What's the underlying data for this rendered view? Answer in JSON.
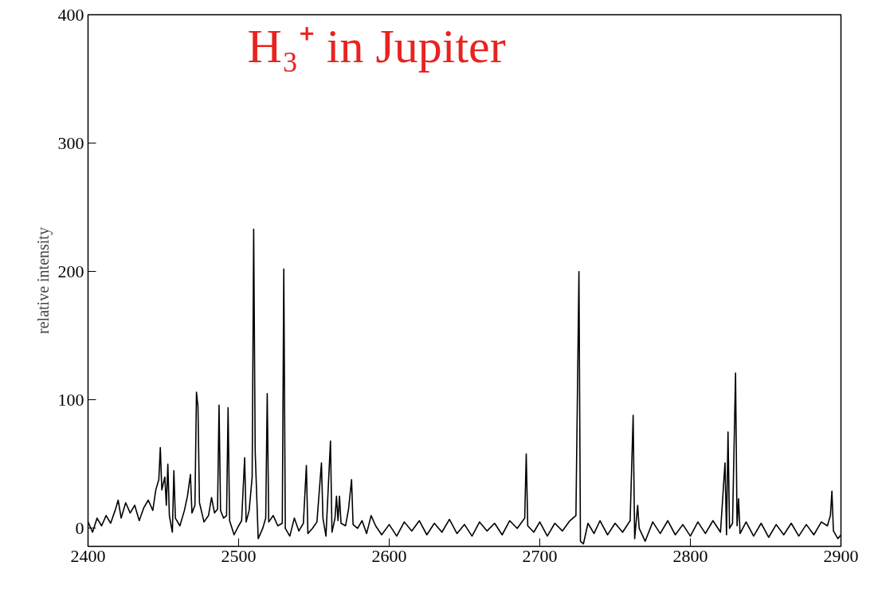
{
  "chart_data": {
    "type": "line",
    "title": "H₃⁺ in Jupiter",
    "ylabel": "relative intensity",
    "xlim": [
      2400,
      2900
    ],
    "xticks": [
      2400,
      2500,
      2600,
      2700,
      2800,
      2900
    ],
    "ylim": [
      -14,
      400
    ],
    "yticks": [
      0,
      100,
      200,
      300,
      400
    ],
    "grid": false,
    "marker": "none",
    "line_style": "solid",
    "series": [
      {
        "color": "#000000",
        "x": [
          2400,
          2403,
          2406,
          2409,
          2412,
          2415,
          2418,
          2420,
          2422,
          2425,
          2428,
          2431,
          2434,
          2437,
          2440,
          2443,
          2445,
          2447,
          2448,
          2449,
          2451,
          2452,
          2453,
          2454,
          2456,
          2457,
          2458,
          2461,
          2464,
          2466,
          2468,
          2469,
          2471,
          2472,
          2473,
          2474,
          2477,
          2480,
          2482,
          2484,
          2486,
          2487,
          2488,
          2490,
          2492,
          2493,
          2494,
          2497,
          2500,
          2502,
          2504,
          2505,
          2507,
          2509,
          2510,
          2511,
          2513,
          2516,
          2518,
          2519,
          2520,
          2523,
          2526,
          2529,
          2530,
          2531,
          2534,
          2537,
          2540,
          2543,
          2545,
          2546,
          2549,
          2552,
          2555,
          2556,
          2558,
          2561,
          2562,
          2564,
          2565,
          2566,
          2567,
          2568,
          2571,
          2573,
          2575,
          2576,
          2579,
          2582,
          2585,
          2588,
          2591,
          2595,
          2600,
          2605,
          2610,
          2615,
          2620,
          2625,
          2630,
          2635,
          2640,
          2645,
          2650,
          2655,
          2660,
          2665,
          2670,
          2675,
          2680,
          2685,
          2690,
          2691,
          2692,
          2696,
          2700,
          2705,
          2710,
          2715,
          2720,
          2724,
          2726,
          2727,
          2729,
          2732,
          2736,
          2740,
          2745,
          2750,
          2755,
          2760,
          2762,
          2763,
          2765,
          2766,
          2770,
          2775,
          2780,
          2785,
          2790,
          2795,
          2800,
          2805,
          2810,
          2815,
          2820,
          2823,
          2824,
          2825,
          2826,
          2828,
          2830,
          2831,
          2832,
          2833,
          2837,
          2842,
          2847,
          2852,
          2857,
          2862,
          2867,
          2872,
          2877,
          2882,
          2887,
          2891,
          2893,
          2894,
          2895,
          2898,
          2900
        ],
        "values": [
          5,
          -3,
          8,
          2,
          10,
          4,
          14,
          22,
          8,
          20,
          12,
          18,
          6,
          16,
          22,
          14,
          30,
          38,
          63,
          30,
          40,
          18,
          50,
          10,
          -3,
          45,
          8,
          2,
          14,
          25,
          42,
          12,
          18,
          106,
          95,
          20,
          5,
          10,
          24,
          12,
          15,
          96,
          14,
          8,
          10,
          94,
          6,
          -5,
          2,
          6,
          55,
          5,
          14,
          40,
          233,
          60,
          -8,
          0,
          8,
          105,
          5,
          10,
          2,
          4,
          202,
          0,
          -6,
          8,
          -2,
          4,
          49,
          -4,
          0,
          5,
          51,
          8,
          -6,
          68,
          -3,
          8,
          25,
          6,
          25,
          4,
          2,
          15,
          38,
          3,
          0,
          6,
          -4,
          10,
          2,
          -5,
          3,
          -6,
          5,
          -2,
          6,
          -5,
          4,
          -3,
          7,
          -4,
          3,
          -6,
          5,
          -2,
          4,
          -5,
          6,
          0,
          8,
          58,
          2,
          -3,
          5,
          -6,
          4,
          -2,
          6,
          10,
          200,
          -10,
          -12,
          4,
          -4,
          6,
          -5,
          4,
          -3,
          6,
          88,
          -8,
          18,
          0,
          -10,
          5,
          -4,
          6,
          -5,
          3,
          -6,
          5,
          -4,
          6,
          -3,
          51,
          -5,
          75,
          0,
          4,
          121,
          2,
          23,
          -4,
          5,
          -6,
          4,
          -7,
          3,
          -5,
          4,
          -6,
          3,
          -5,
          5,
          2,
          10,
          29,
          -2,
          -8,
          -5
        ]
      }
    ]
  }
}
